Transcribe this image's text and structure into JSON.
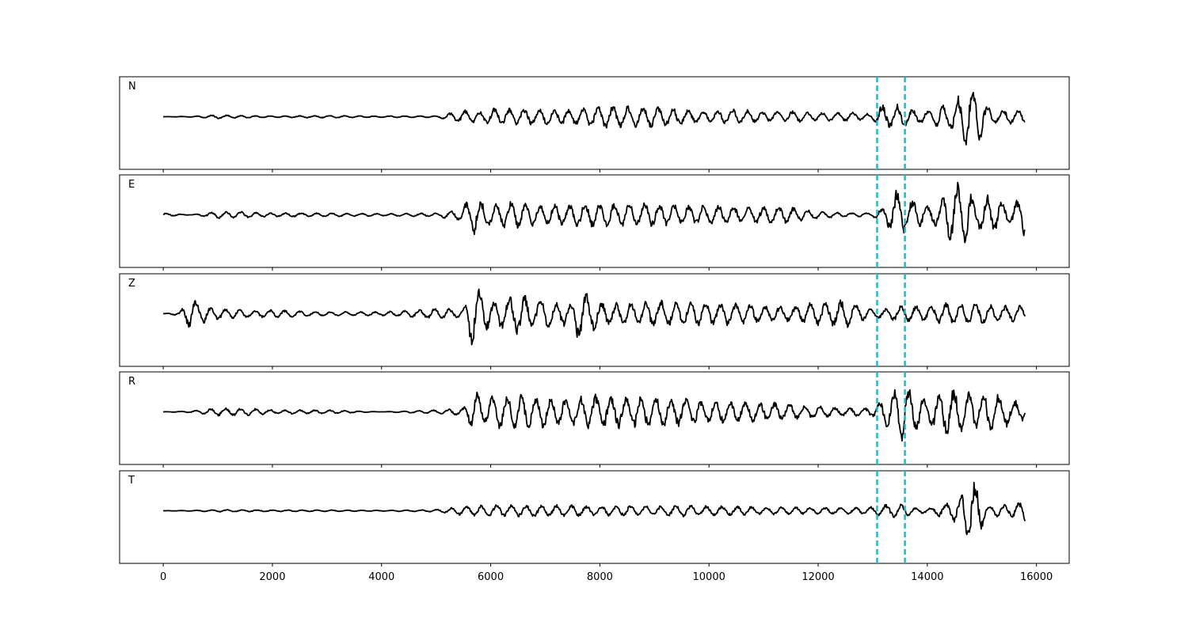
{
  "chart_data": {
    "type": "line",
    "title": "",
    "xlabel": "",
    "ylabel": "",
    "xlim": [
      -800,
      16600
    ],
    "x_ticks": [
      0,
      2000,
      4000,
      6000,
      8000,
      10000,
      12000,
      14000,
      16000
    ],
    "x_tick_labels": [
      "0",
      "2000",
      "4000",
      "6000",
      "8000",
      "10000",
      "12000",
      "14000",
      "16000"
    ],
    "x_range": [
      0,
      15800
    ],
    "y_ticks_shown": false,
    "grid": false,
    "line_color": "#000000",
    "marker_color": "#17becf",
    "markers": [
      13080,
      13590
    ],
    "series": [
      {
        "name": "N",
        "waveform_points": [
          [
            0,
            0
          ],
          [
            500,
            0.01
          ],
          [
            1000,
            0.05
          ],
          [
            1500,
            -0.03
          ],
          [
            2000,
            0.02
          ],
          [
            3000,
            0.03
          ],
          [
            4000,
            0.02
          ],
          [
            5000,
            -0.02
          ],
          [
            5600,
            0.2
          ],
          [
            5800,
            0.12
          ],
          [
            6000,
            -0.25
          ],
          [
            6500,
            0.2
          ],
          [
            7000,
            -0.22
          ],
          [
            7500,
            0.2
          ],
          [
            8000,
            0.3
          ],
          [
            8300,
            -0.3
          ],
          [
            8800,
            0.25
          ],
          [
            9000,
            -0.3
          ],
          [
            9500,
            0.2
          ],
          [
            10000,
            -0.15
          ],
          [
            10500,
            0.2
          ],
          [
            11000,
            -0.12
          ],
          [
            11500,
            0.15
          ],
          [
            12000,
            -0.1
          ],
          [
            12500,
            0.12
          ],
          [
            13000,
            -0.08
          ],
          [
            13150,
            0.35
          ],
          [
            13300,
            -0.3
          ],
          [
            13500,
            0.3
          ],
          [
            13700,
            -0.2
          ],
          [
            14000,
            0.15
          ],
          [
            14200,
            0.3
          ],
          [
            14400,
            -0.3
          ],
          [
            14600,
            0.55
          ],
          [
            14800,
            -0.9
          ],
          [
            14950,
            0.65
          ],
          [
            15100,
            0.25
          ],
          [
            15300,
            -0.15
          ],
          [
            15500,
            0.2
          ],
          [
            15800,
            -0.15
          ]
        ]
      },
      {
        "name": "E",
        "waveform_points": [
          [
            0,
            0.05
          ],
          [
            500,
            0
          ],
          [
            1000,
            0.1
          ],
          [
            1500,
            -0.08
          ],
          [
            2000,
            0.05
          ],
          [
            3000,
            0.05
          ],
          [
            4000,
            -0.03
          ],
          [
            5000,
            0.05
          ],
          [
            5450,
            0.15
          ],
          [
            5700,
            0.55
          ],
          [
            5800,
            -0.35
          ],
          [
            6000,
            0.3
          ],
          [
            6500,
            -0.35
          ],
          [
            7000,
            0.25
          ],
          [
            7500,
            -0.3
          ],
          [
            7800,
            0.3
          ],
          [
            8000,
            -0.3
          ],
          [
            8500,
            0.3
          ],
          [
            9000,
            -0.3
          ],
          [
            9500,
            0.25
          ],
          [
            10000,
            -0.25
          ],
          [
            10500,
            0.2
          ],
          [
            11000,
            -0.25
          ],
          [
            11500,
            0.2
          ],
          [
            12000,
            -0.1
          ],
          [
            12500,
            0.05
          ],
          [
            13000,
            -0.05
          ],
          [
            13250,
            0.25
          ],
          [
            13450,
            0.65
          ],
          [
            13600,
            -0.45
          ],
          [
            13800,
            0.35
          ],
          [
            14000,
            -0.25
          ],
          [
            14200,
            0.3
          ],
          [
            14500,
            -0.8
          ],
          [
            14700,
            0.8
          ],
          [
            14900,
            -0.3
          ],
          [
            15100,
            0.5
          ],
          [
            15300,
            -0.4
          ],
          [
            15500,
            0.2
          ],
          [
            15800,
            0.55
          ]
        ]
      },
      {
        "name": "Z",
        "waveform_points": [
          [
            0,
            0
          ],
          [
            300,
            0.05
          ],
          [
            450,
            0.35
          ],
          [
            550,
            -0.45
          ],
          [
            700,
            0.3
          ],
          [
            800,
            -0.2
          ],
          [
            1000,
            0.15
          ],
          [
            1500,
            -0.1
          ],
          [
            2000,
            0.1
          ],
          [
            3000,
            0.05
          ],
          [
            4000,
            -0.05
          ],
          [
            4700,
            0.1
          ],
          [
            5000,
            0.15
          ],
          [
            5500,
            0.1
          ],
          [
            5600,
            0.8
          ],
          [
            5700,
            -0.8
          ],
          [
            5800,
            0.6
          ],
          [
            6000,
            -0.3
          ],
          [
            6200,
            0.4
          ],
          [
            6500,
            -0.55
          ],
          [
            7000,
            0.35
          ],
          [
            7500,
            -0.3
          ],
          [
            7600,
            0.75
          ],
          [
            8000,
            -0.3
          ],
          [
            8500,
            0.3
          ],
          [
            9000,
            -0.35
          ],
          [
            9500,
            0.3
          ],
          [
            10000,
            -0.3
          ],
          [
            10500,
            0.3
          ],
          [
            11000,
            -0.2
          ],
          [
            11500,
            0.2
          ],
          [
            12000,
            -0.3
          ],
          [
            12500,
            0.35
          ],
          [
            13000,
            -0.1
          ],
          [
            13500,
            0.2
          ],
          [
            14000,
            -0.2
          ],
          [
            14500,
            0.3
          ],
          [
            15000,
            -0.25
          ],
          [
            15500,
            0.2
          ],
          [
            15800,
            0.2
          ]
        ]
      },
      {
        "name": "R",
        "waveform_points": [
          [
            0,
            0
          ],
          [
            500,
            -0.02
          ],
          [
            1000,
            0.1
          ],
          [
            1500,
            -0.1
          ],
          [
            2000,
            0.05
          ],
          [
            3000,
            0.05
          ],
          [
            4000,
            0
          ],
          [
            5000,
            0.05
          ],
          [
            5500,
            0.1
          ],
          [
            5700,
            0.55
          ],
          [
            5900,
            -0.3
          ],
          [
            6000,
            0.4
          ],
          [
            6500,
            -0.45
          ],
          [
            7000,
            0.4
          ],
          [
            7500,
            -0.35
          ],
          [
            8000,
            0.45
          ],
          [
            8500,
            -0.4
          ],
          [
            9000,
            0.4
          ],
          [
            9500,
            -0.35
          ],
          [
            10000,
            0.3
          ],
          [
            10500,
            -0.25
          ],
          [
            11000,
            0.25
          ],
          [
            11500,
            -0.2
          ],
          [
            12000,
            0.15
          ],
          [
            12500,
            -0.1
          ],
          [
            13000,
            0.12
          ],
          [
            13300,
            -0.45
          ],
          [
            13500,
            0.85
          ],
          [
            13600,
            -0.7
          ],
          [
            13800,
            0.45
          ],
          [
            14000,
            -0.35
          ],
          [
            14300,
            0.6
          ],
          [
            14600,
            -0.6
          ],
          [
            14900,
            0.55
          ],
          [
            15200,
            -0.55
          ],
          [
            15500,
            0.35
          ],
          [
            15800,
            0.2
          ]
        ]
      },
      {
        "name": "T",
        "waveform_points": [
          [
            0,
            0
          ],
          [
            500,
            0.01
          ],
          [
            1000,
            0.03
          ],
          [
            2000,
            -0.02
          ],
          [
            3000,
            0.02
          ],
          [
            4000,
            0.01
          ],
          [
            5000,
            -0.03
          ],
          [
            5500,
            0.12
          ],
          [
            6000,
            -0.15
          ],
          [
            6500,
            0.15
          ],
          [
            7000,
            -0.15
          ],
          [
            7500,
            0.15
          ],
          [
            8000,
            -0.12
          ],
          [
            8500,
            0.15
          ],
          [
            9000,
            -0.12
          ],
          [
            9500,
            0.15
          ],
          [
            10000,
            -0.12
          ],
          [
            10500,
            0.12
          ],
          [
            11000,
            -0.1
          ],
          [
            11500,
            0.1
          ],
          [
            12000,
            -0.08
          ],
          [
            12500,
            0.08
          ],
          [
            13000,
            -0.1
          ],
          [
            13200,
            0.15
          ],
          [
            13500,
            -0.2
          ],
          [
            13700,
            0.1
          ],
          [
            14000,
            -0.05
          ],
          [
            14200,
            0.15
          ],
          [
            14400,
            -0.2
          ],
          [
            14600,
            0.4
          ],
          [
            14800,
            -0.85
          ],
          [
            14950,
            0.65
          ],
          [
            15100,
            0.1
          ],
          [
            15300,
            -0.15
          ],
          [
            15500,
            0.15
          ],
          [
            15800,
            -0.3
          ]
        ]
      }
    ]
  }
}
